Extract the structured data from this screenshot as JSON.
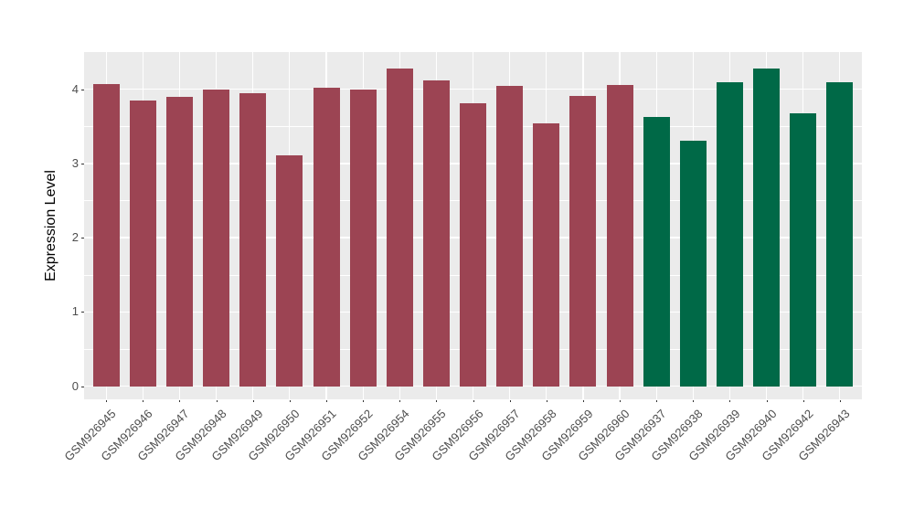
{
  "colors": {
    "bar_maroon": "#9C4453",
    "bar_green": "#006947",
    "panel_background": "#EBEBEB",
    "gridline": "#FFFFFF",
    "tick_label": "#4D4D4D",
    "axis_title": "#000000",
    "tick_mark": "#333333",
    "figure_background": "#FFFFFF"
  },
  "chart_data": {
    "type": "bar",
    "title": "",
    "xlabel": "",
    "ylabel": "Expression Level",
    "ylim": [
      0,
      4.5
    ],
    "yticks": [
      "0",
      "1",
      "2",
      "3",
      "4"
    ],
    "y_minor_gridlines": [
      0.5,
      1.5,
      2.5,
      3.5
    ],
    "grid": true,
    "legend": "none",
    "x_label_angle_degrees": 45,
    "categories": [
      "GSM926945",
      "GSM926946",
      "GSM926947",
      "GSM926948",
      "GSM926949",
      "GSM926950",
      "GSM926951",
      "GSM926952",
      "GSM926954",
      "GSM926955",
      "GSM926956",
      "GSM926957",
      "GSM926958",
      "GSM926959",
      "GSM926960",
      "GSM926937",
      "GSM926938",
      "GSM926939",
      "GSM926940",
      "GSM926942",
      "GSM926943"
    ],
    "values": [
      4.07,
      3.85,
      3.9,
      4.0,
      3.94,
      3.11,
      4.02,
      4.0,
      4.28,
      4.12,
      3.81,
      4.04,
      3.54,
      3.91,
      4.06,
      3.63,
      3.31,
      4.09,
      4.28,
      3.67,
      4.09
    ],
    "bar_color_keys": [
      "bar_maroon",
      "bar_maroon",
      "bar_maroon",
      "bar_maroon",
      "bar_maroon",
      "bar_maroon",
      "bar_maroon",
      "bar_maroon",
      "bar_maroon",
      "bar_maroon",
      "bar_maroon",
      "bar_maroon",
      "bar_maroon",
      "bar_maroon",
      "bar_maroon",
      "bar_green",
      "bar_green",
      "bar_green",
      "bar_green",
      "bar_green",
      "bar_green"
    ]
  }
}
